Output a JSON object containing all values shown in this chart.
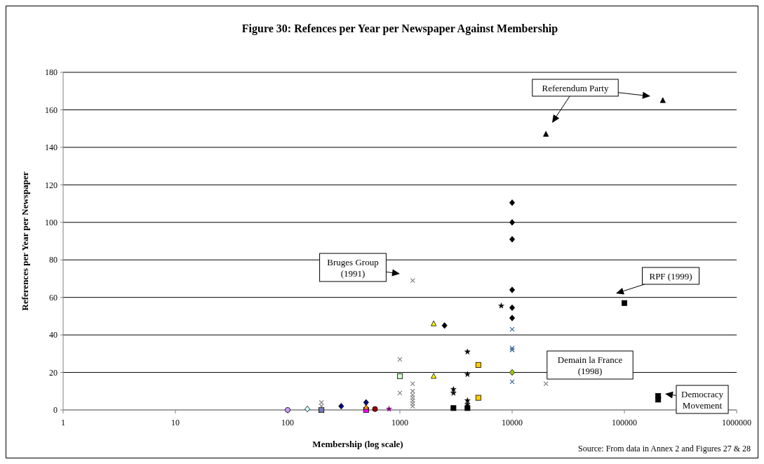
{
  "chart_data": {
    "type": "scatter",
    "title": "Figure 30: Refences per Year per Newspaper Against Membership",
    "xlabel": "Membership (log scale)",
    "ylabel": "References per Year per Newspaper",
    "log": "x",
    "xlim": [
      1,
      1000000
    ],
    "xticks": [
      1,
      10,
      100,
      1000,
      10000,
      100000,
      1000000
    ],
    "ylim": [
      0,
      180
    ],
    "yticks": [
      0,
      20,
      40,
      60,
      80,
      100,
      120,
      140,
      160,
      180
    ],
    "grid": "y",
    "series": [
      {
        "color": "#cc99ff",
        "marker": "circle",
        "x": [
          100
        ],
        "values": [
          0
        ]
      },
      {
        "color": "#ccffff",
        "marker": "diamond",
        "x": [
          150
        ],
        "values": [
          0.5
        ]
      },
      {
        "color": "#7777bb",
        "marker": "square",
        "x": [
          200
        ],
        "values": [
          0
        ]
      },
      {
        "color": "#808080",
        "marker": "cross",
        "x": [
          200,
          200,
          1000,
          1000,
          1300,
          1300,
          1300,
          1300,
          1300,
          1300,
          1300,
          1300,
          20000
        ],
        "values": [
          4,
          2,
          27,
          9,
          69,
          14,
          10,
          8,
          6.5,
          5,
          3.5,
          2,
          14
        ]
      },
      {
        "color": "#000080",
        "marker": "diamond",
        "x": [
          300,
          500
        ],
        "values": [
          2,
          4
        ]
      },
      {
        "color": "#ff9900",
        "marker": "triangle",
        "x": [
          500
        ],
        "values": [
          1.5
        ]
      },
      {
        "color": "#ff00ff",
        "marker": "square",
        "x": [
          500
        ],
        "values": [
          0
        ]
      },
      {
        "color": "#990000",
        "marker": "circle",
        "x": [
          600
        ],
        "values": [
          0.5
        ]
      },
      {
        "color": "#800080",
        "marker": "star",
        "x": [
          800
        ],
        "values": [
          0.5
        ]
      },
      {
        "color": "#ccffcc",
        "marker": "square",
        "x": [
          1000
        ],
        "values": [
          18
        ]
      },
      {
        "color": "#ffff00",
        "marker": "triangle",
        "x": [
          2000,
          2000
        ],
        "values": [
          46,
          18
        ]
      },
      {
        "color": "#000000",
        "marker": "diamond",
        "x": [
          2500,
          10000,
          10000,
          10000,
          10000,
          10000,
          10000
        ],
        "values": [
          45,
          110.5,
          100,
          91,
          64,
          54.5,
          49
        ]
      },
      {
        "color": "#000000",
        "marker": "star",
        "x": [
          3000,
          3000,
          4000,
          4000,
          4000,
          4000,
          8000
        ],
        "values": [
          11,
          9,
          31,
          19,
          5,
          3,
          55.5
        ]
      },
      {
        "color": "#000000",
        "marker": "square",
        "x": [
          3000,
          4000
        ],
        "values": [
          1,
          1
        ]
      },
      {
        "color": "#ffcc00",
        "marker": "square",
        "x": [
          5000,
          5000
        ],
        "values": [
          24,
          6.5
        ]
      },
      {
        "color": "#336699",
        "marker": "cross",
        "x": [
          10000,
          10000,
          10000,
          10000
        ],
        "values": [
          43,
          33,
          32,
          15
        ]
      },
      {
        "color": "#99cc00",
        "marker": "diamond",
        "x": [
          10000
        ],
        "values": [
          20
        ]
      },
      {
        "color": "#000000",
        "marker": "triangle",
        "x": [
          20000,
          220000
        ],
        "values": [
          147,
          165
        ]
      },
      {
        "color": "#000000",
        "marker": "square",
        "x": [
          100000,
          200000,
          200000
        ],
        "values": [
          57,
          7.5,
          5.5
        ]
      }
    ],
    "annotations": [
      "Bruges Group (1991)",
      "Referendum Party",
      "RPF (1999)",
      "Demain la France (1998)",
      "Democracy Movement",
      "Source: From data in Annex 2 and Figures 27 & 28"
    ]
  }
}
